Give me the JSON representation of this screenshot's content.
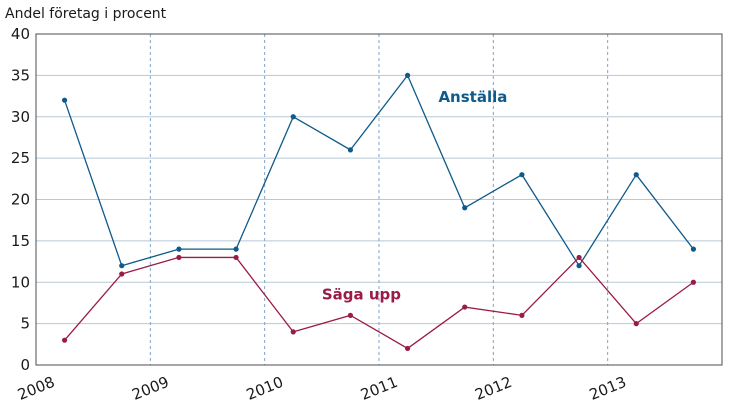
{
  "chart_data": {
    "type": "line",
    "ylabel": "Andel företag i procent",
    "xlabel": "",
    "ylim": [
      0,
      40
    ],
    "yticks": [
      0,
      5,
      10,
      15,
      20,
      25,
      30,
      35,
      40
    ],
    "xlim": [
      2008,
      2014
    ],
    "year_ticks": [
      "2008",
      "2009",
      "2010",
      "2011",
      "2012",
      "2013"
    ],
    "grid": {
      "horizontal": true,
      "vertical_dashed": true
    },
    "x": [
      2008.25,
      2008.75,
      2009.25,
      2009.75,
      2010.25,
      2010.75,
      2011.25,
      2011.75,
      2012.25,
      2012.75,
      2013.25,
      2013.75
    ],
    "series": [
      {
        "name": "Anställa",
        "color": "#0e5a8a",
        "values": [
          32,
          12,
          14,
          14,
          30,
          26,
          35,
          19,
          23,
          12,
          23,
          14
        ]
      },
      {
        "name": "Säga upp",
        "color": "#9b1b47",
        "values": [
          3,
          11,
          13,
          13,
          4,
          6,
          2,
          7,
          6,
          13,
          5,
          10
        ]
      }
    ]
  }
}
